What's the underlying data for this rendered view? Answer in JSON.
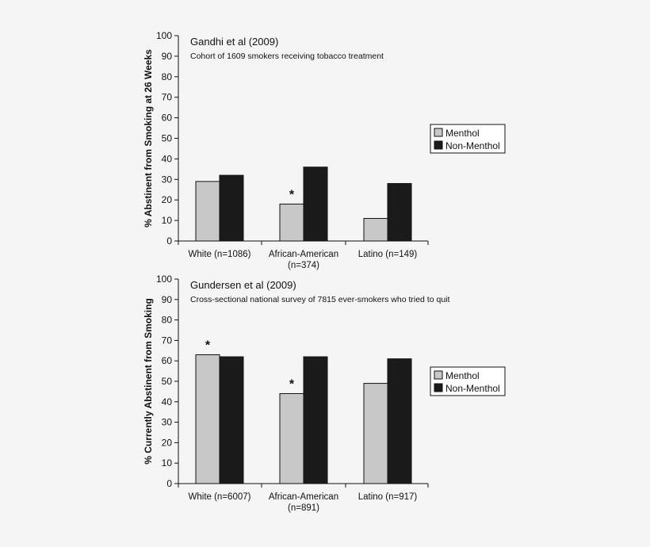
{
  "chart_data": [
    {
      "type": "bar",
      "title": "Gandhi et al (2009)",
      "subtitle": "Cohort of 1609 smokers receiving tobacco treatment",
      "ylabel": "% Abstinent from Smoking at 26 Weeks",
      "xlabel": "",
      "ylim": [
        0,
        100
      ],
      "yticks": [
        "0",
        "10",
        "20",
        "30",
        "40",
        "50",
        "60",
        "70",
        "80",
        "90",
        "100"
      ],
      "categories": [
        {
          "line1": "White (n=1086)",
          "line2": ""
        },
        {
          "line1": "African-American",
          "line2": "(n=374)"
        },
        {
          "line1": "Latino (n=149)",
          "line2": ""
        }
      ],
      "series": [
        {
          "name": "Menthol",
          "color": "#c8c8c8",
          "values": [
            29,
            18,
            11
          ]
        },
        {
          "name": "Non-Menthol",
          "color": "#1a1a1a",
          "values": [
            32,
            36,
            28
          ]
        }
      ],
      "annotations": [
        {
          "text": "*",
          "category_index": 1,
          "series_index": 0
        }
      ],
      "legend_position": "right",
      "grid": false
    },
    {
      "type": "bar",
      "title": "Gundersen et al (2009)",
      "subtitle": "Cross-sectional national survey of 7815 ever-smokers who tried to quit",
      "ylabel": "% Currently Abstinent from Smoking",
      "xlabel": "",
      "ylim": [
        0,
        100
      ],
      "yticks": [
        "0",
        "10",
        "20",
        "30",
        "40",
        "50",
        "60",
        "70",
        "80",
        "90",
        "100"
      ],
      "categories": [
        {
          "line1": "White (n=6007)",
          "line2": ""
        },
        {
          "line1": "African-American",
          "line2": "(n=891)"
        },
        {
          "line1": "Latino (n=917)",
          "line2": ""
        }
      ],
      "series": [
        {
          "name": "Menthol",
          "color": "#c8c8c8",
          "values": [
            63,
            44,
            49
          ]
        },
        {
          "name": "Non-Menthol",
          "color": "#1a1a1a",
          "values": [
            62,
            62,
            61
          ]
        }
      ],
      "annotations": [
        {
          "text": "*",
          "category_index": 0,
          "series_index": 0
        },
        {
          "text": "*",
          "category_index": 1,
          "series_index": 0
        }
      ],
      "legend_position": "right",
      "grid": false
    }
  ]
}
